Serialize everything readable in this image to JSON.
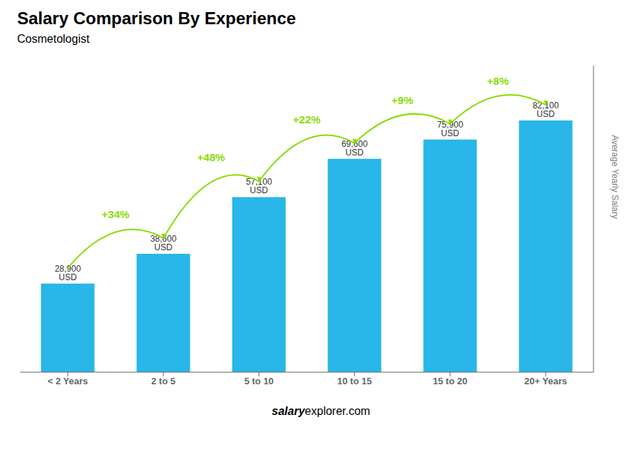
{
  "chart_data": {
    "type": "bar",
    "title": "Salary Comparison By Experience",
    "subtitle": "Cosmetologist",
    "categories": [
      "< 2 Years",
      "2 to 5",
      "5 to 10",
      "10 to 15",
      "15 to 20",
      "20+ Years"
    ],
    "values": [
      28900,
      38600,
      57100,
      69600,
      75900,
      82100
    ],
    "value_labels": [
      "28,900 USD",
      "38,600 USD",
      "57,100 USD",
      "69,600 USD",
      "75,900 USD",
      "82,100 USD"
    ],
    "data_labels": true,
    "color": "#29B6E8",
    "y_label": "Average Yearly Salary",
    "ylim": [
      0,
      100000
    ],
    "tick_labels": "x",
    "grid": false,
    "annotations": [
      {
        "text": "+34%",
        "color": "#88DD00"
      },
      {
        "text": "+48%",
        "color": "#88DD00"
      },
      {
        "text": "+22%",
        "color": "#88DD00"
      },
      {
        "text": "+9%",
        "color": "#88DD00"
      },
      {
        "text": "+8%",
        "color": "#88DD00"
      }
    ],
    "watermark": [
      "salary",
      "explorer.com"
    ]
  }
}
